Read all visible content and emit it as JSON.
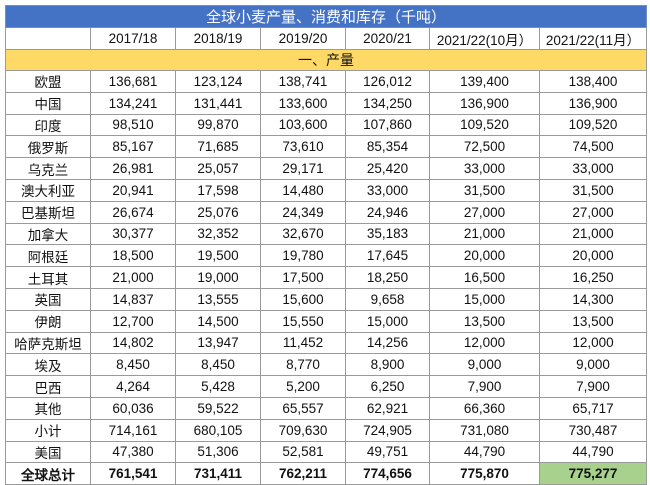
{
  "title": "全球小麦产量、消费和库存（千吨）",
  "columns": [
    "",
    "2017/18",
    "2018/19",
    "2019/20",
    "2020/21",
    "2021/22(10月）",
    "2021/22(11月）"
  ],
  "section": "一、产量",
  "rows": [
    {
      "label": "欧盟",
      "values": [
        "136,681",
        "123,124",
        "138,741",
        "126,012",
        "139,400",
        "138,400"
      ]
    },
    {
      "label": "中国",
      "values": [
        "134,241",
        "131,441",
        "133,600",
        "134,250",
        "136,900",
        "136,900"
      ]
    },
    {
      "label": "印度",
      "values": [
        "98,510",
        "99,870",
        "103,600",
        "107,860",
        "109,520",
        "109,520"
      ]
    },
    {
      "label": "俄罗斯",
      "values": [
        "85,167",
        "71,685",
        "73,610",
        "85,354",
        "72,500",
        "74,500"
      ]
    },
    {
      "label": "乌克兰",
      "values": [
        "26,981",
        "25,057",
        "29,171",
        "25,420",
        "33,000",
        "33,000"
      ]
    },
    {
      "label": "澳大利亚",
      "values": [
        "20,941",
        "17,598",
        "14,480",
        "33,000",
        "31,500",
        "31,500"
      ]
    },
    {
      "label": "巴基斯坦",
      "values": [
        "26,674",
        "25,076",
        "24,349",
        "24,946",
        "27,000",
        "27,000"
      ]
    },
    {
      "label": "加拿大",
      "values": [
        "30,377",
        "32,352",
        "32,670",
        "35,183",
        "21,000",
        "21,000"
      ]
    },
    {
      "label": "阿根廷",
      "values": [
        "18,500",
        "19,500",
        "19,780",
        "17,645",
        "20,000",
        "20,000"
      ]
    },
    {
      "label": "土耳其",
      "values": [
        "21,000",
        "19,000",
        "17,500",
        "18,250",
        "16,500",
        "16,250"
      ]
    },
    {
      "label": "英国",
      "values": [
        "14,837",
        "13,555",
        "15,600",
        "9,658",
        "15,000",
        "14,300"
      ]
    },
    {
      "label": "伊朗",
      "values": [
        "12,700",
        "14,500",
        "15,550",
        "15,000",
        "13,500",
        "13,500"
      ]
    },
    {
      "label": "哈萨克斯坦",
      "values": [
        "14,802",
        "13,947",
        "11,452",
        "14,256",
        "12,000",
        "12,000"
      ]
    },
    {
      "label": "埃及",
      "values": [
        "8,450",
        "8,450",
        "8,770",
        "8,900",
        "9,000",
        "9,000"
      ]
    },
    {
      "label": "巴西",
      "values": [
        "4,264",
        "5,428",
        "5,200",
        "6,250",
        "7,900",
        "7,900"
      ]
    },
    {
      "label": "其他",
      "values": [
        "60,036",
        "59,522",
        "65,557",
        "62,921",
        "66,360",
        "65,717"
      ]
    },
    {
      "label": "小计",
      "values": [
        "714,161",
        "680,105",
        "709,630",
        "724,905",
        "731,080",
        "730,487"
      ]
    },
    {
      "label": "美国",
      "values": [
        "47,380",
        "51,306",
        "52,581",
        "49,751",
        "44,790",
        "44,790"
      ]
    },
    {
      "label": "全球总计",
      "values": [
        "761,541",
        "731,411",
        "762,211",
        "774,656",
        "775,870",
        "775,277"
      ],
      "bold": true
    }
  ],
  "colors": {
    "title_bg": "#4472c4",
    "section_bg": "#ffd966",
    "highlight": "#a9d18e"
  }
}
